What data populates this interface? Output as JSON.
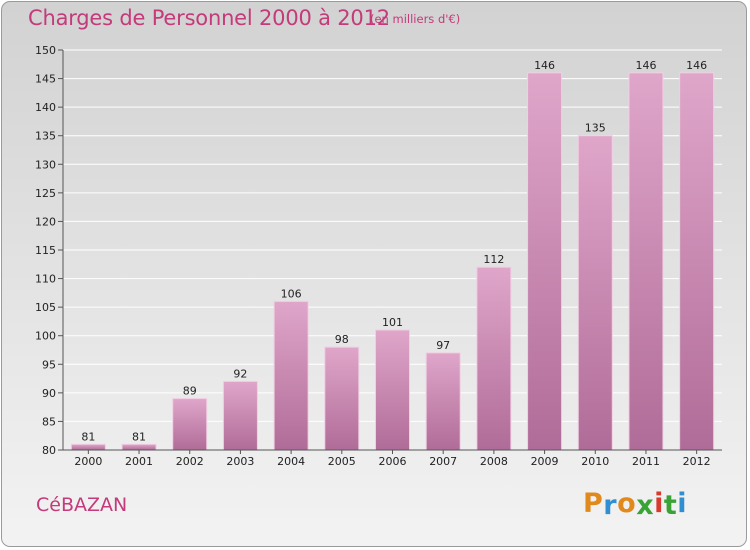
{
  "header": {
    "title": "Charges de Personnel 2000 à 2012",
    "unit": "(en milliers d'€)"
  },
  "footer": {
    "commune": "CéBAZAN",
    "logo_letters": [
      "P",
      "r",
      "o",
      "x",
      "i",
      "t",
      "i"
    ],
    "logo_colors": [
      "#e08a1e",
      "#2f8fd0",
      "#e08a1e",
      "#3aa336",
      "#d83a2f",
      "#3aa336",
      "#2f8fd0"
    ]
  },
  "colors": {
    "bar_top": "#e0a6ca",
    "bar_bottom": "#b06c98",
    "bar_edge": "#f0cfe2",
    "grid": "#ffffff",
    "axis": "#555555",
    "accent": "#c43a7a"
  },
  "chart_data": {
    "type": "bar",
    "title": "Charges de Personnel 2000 à 2012",
    "subtitle": "(en milliers d'€)",
    "xlabel": "",
    "ylabel": "",
    "categories": [
      "2000",
      "2001",
      "2002",
      "2003",
      "2004",
      "2005",
      "2006",
      "2007",
      "2008",
      "2009",
      "2010",
      "2011",
      "2012"
    ],
    "values": [
      81,
      81,
      89,
      92,
      106,
      98,
      101,
      97,
      112,
      146,
      135,
      146,
      146
    ],
    "data_labels": [
      "81",
      "81",
      "89",
      "92",
      "106",
      "98",
      "101",
      "97",
      "112",
      "146",
      "135",
      "146",
      "146"
    ],
    "ylim": [
      80,
      150
    ],
    "yticks": [
      80,
      85,
      90,
      95,
      100,
      105,
      110,
      115,
      120,
      125,
      130,
      135,
      140,
      145,
      150
    ],
    "ytick_labels": [
      "80",
      "85",
      "90",
      "95",
      "100",
      "105",
      "110",
      "115",
      "120",
      "125",
      "130",
      "135",
      "140",
      "145",
      "150"
    ],
    "grid": true,
    "legend": "none"
  }
}
